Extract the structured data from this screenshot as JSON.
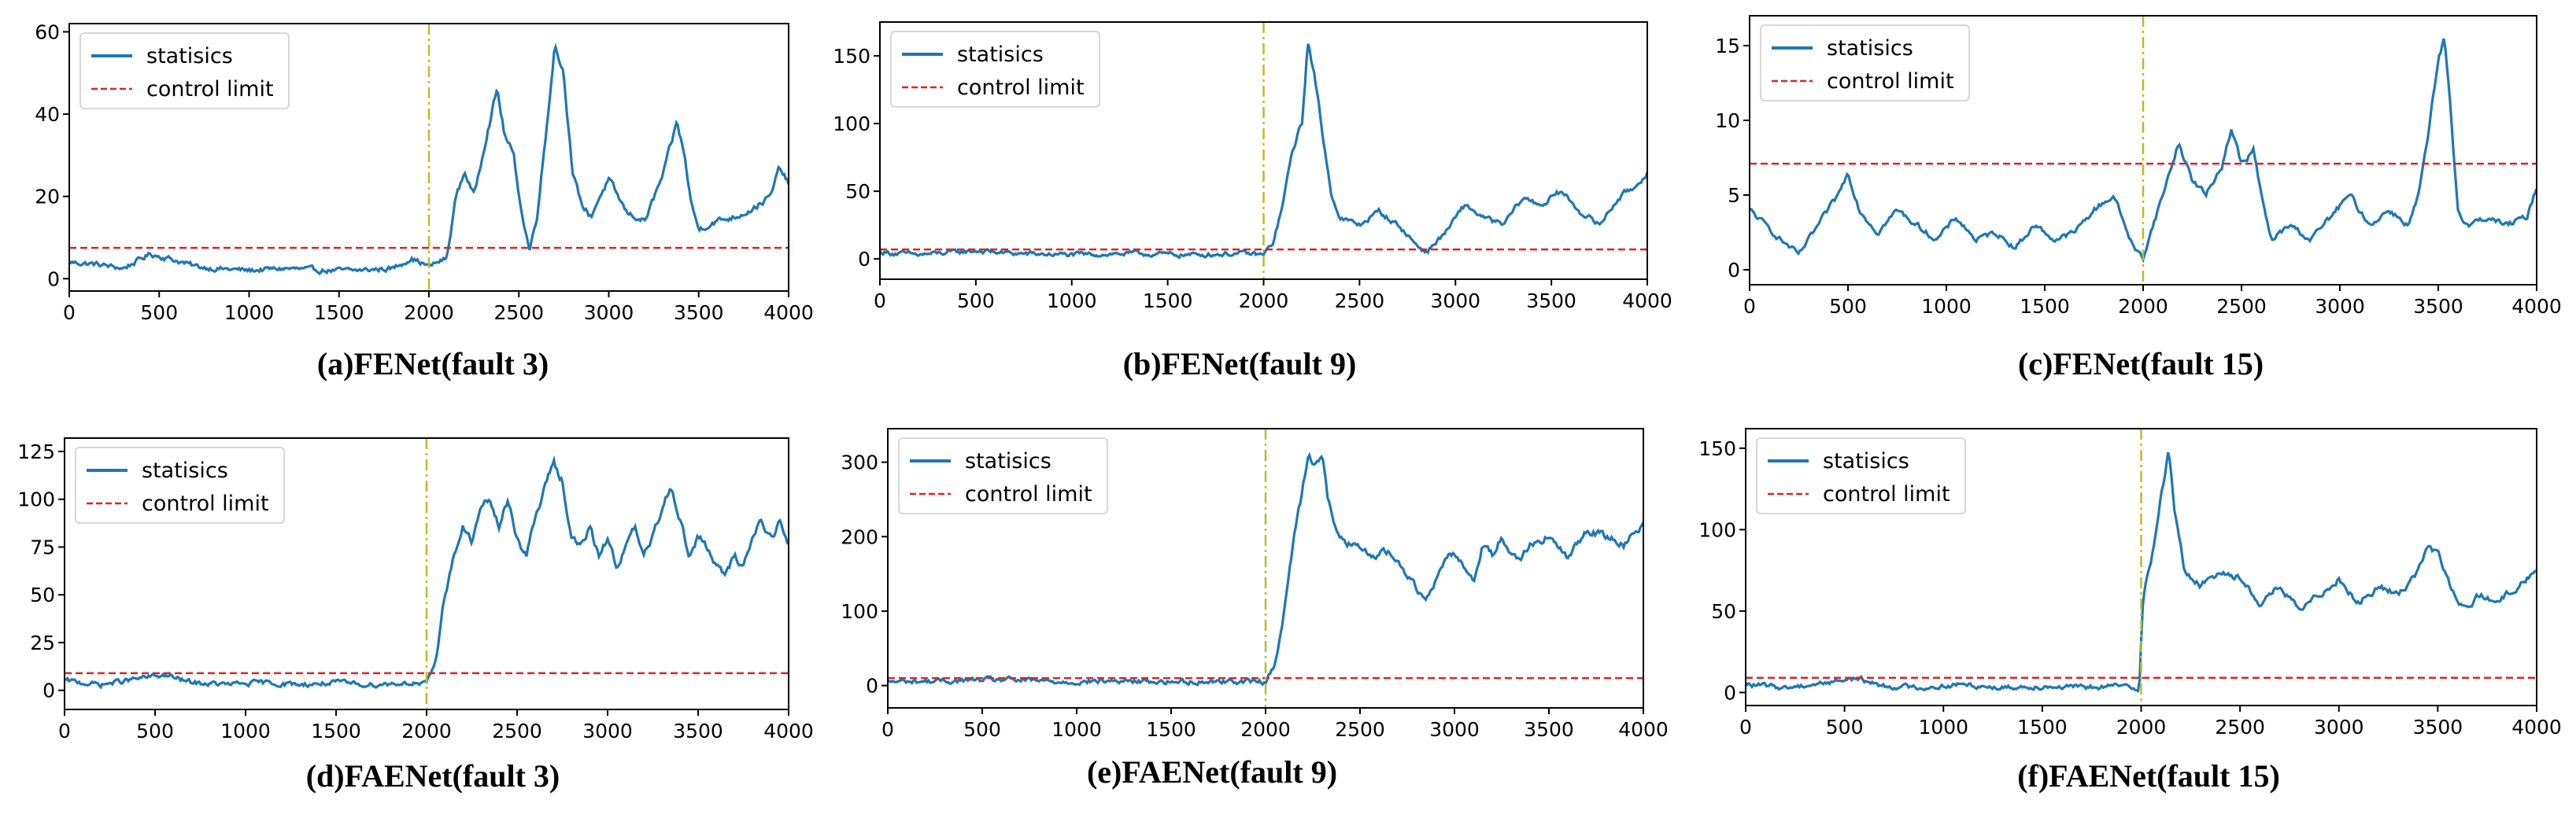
{
  "colors": {
    "statistics": "#1f77b4",
    "control_limit": "#d62728",
    "fault_line": "#bcbd22"
  },
  "chart_data": [
    {
      "type": "line",
      "caption": "(a)FENet(fault 3)",
      "legend": [
        "statisics",
        "control limit"
      ],
      "legend_position": "top-left",
      "xlim": [
        0,
        4000
      ],
      "ylim": [
        -3,
        62
      ],
      "xticks": [
        0,
        500,
        1000,
        1500,
        2000,
        2500,
        3000,
        3500,
        4000
      ],
      "yticks": [
        0,
        20,
        40,
        60
      ],
      "control_limit": 7.5,
      "fault_onset": 2000,
      "series_points": [
        [
          0,
          4
        ],
        [
          150,
          3.5
        ],
        [
          300,
          2.5
        ],
        [
          450,
          6
        ],
        [
          550,
          5
        ],
        [
          700,
          3
        ],
        [
          800,
          2.5
        ],
        [
          1000,
          2
        ],
        [
          1200,
          2.5
        ],
        [
          1400,
          2
        ],
        [
          1600,
          2
        ],
        [
          1800,
          2.5
        ],
        [
          1900,
          5
        ],
        [
          2000,
          3
        ],
        [
          2100,
          5
        ],
        [
          2150,
          20
        ],
        [
          2200,
          26
        ],
        [
          2250,
          20
        ],
        [
          2320,
          35
        ],
        [
          2380,
          46
        ],
        [
          2420,
          35
        ],
        [
          2470,
          30
        ],
        [
          2520,
          15
        ],
        [
          2560,
          7
        ],
        [
          2600,
          15
        ],
        [
          2650,
          35
        ],
        [
          2700,
          57
        ],
        [
          2750,
          50
        ],
        [
          2800,
          25
        ],
        [
          2850,
          18
        ],
        [
          2900,
          15
        ],
        [
          2950,
          20
        ],
        [
          3000,
          24
        ],
        [
          3050,
          20
        ],
        [
          3100,
          16
        ],
        [
          3200,
          14
        ],
        [
          3300,
          25
        ],
        [
          3380,
          38
        ],
        [
          3420,
          30
        ],
        [
          3460,
          18
        ],
        [
          3500,
          12
        ],
        [
          3600,
          14
        ],
        [
          3700,
          15
        ],
        [
          3800,
          17
        ],
        [
          3900,
          20
        ],
        [
          3950,
          27
        ],
        [
          4000,
          23
        ]
      ]
    },
    {
      "type": "line",
      "caption": "(b)FENet(fault 9)",
      "legend": [
        "statisics",
        "control limit"
      ],
      "legend_position": "top-left",
      "xlim": [
        0,
        4000
      ],
      "ylim": [
        -15,
        175
      ],
      "xticks": [
        0,
        500,
        1000,
        1500,
        2000,
        2500,
        3000,
        3500,
        4000
      ],
      "yticks": [
        0,
        50,
        100,
        150
      ],
      "control_limit": 7,
      "fault_onset": 2000,
      "series_points": [
        [
          0,
          5
        ],
        [
          200,
          3
        ],
        [
          500,
          6
        ],
        [
          700,
          4
        ],
        [
          1000,
          3
        ],
        [
          1300,
          4
        ],
        [
          1600,
          3
        ],
        [
          1900,
          4
        ],
        [
          2000,
          3
        ],
        [
          2050,
          12
        ],
        [
          2100,
          40
        ],
        [
          2150,
          80
        ],
        [
          2200,
          100
        ],
        [
          2230,
          160
        ],
        [
          2260,
          140
        ],
        [
          2300,
          100
        ],
        [
          2350,
          50
        ],
        [
          2400,
          30
        ],
        [
          2500,
          25
        ],
        [
          2600,
          35
        ],
        [
          2700,
          25
        ],
        [
          2800,
          10
        ],
        [
          2850,
          5
        ],
        [
          2950,
          20
        ],
        [
          3050,
          40
        ],
        [
          3150,
          30
        ],
        [
          3250,
          25
        ],
        [
          3350,
          45
        ],
        [
          3450,
          40
        ],
        [
          3550,
          50
        ],
        [
          3650,
          35
        ],
        [
          3750,
          25
        ],
        [
          3850,
          45
        ],
        [
          3950,
          55
        ],
        [
          4000,
          65
        ]
      ]
    },
    {
      "type": "line",
      "caption": "(c)FENet(fault 15)",
      "legend": [
        "statisics",
        "control limit"
      ],
      "legend_position": "top-left",
      "xlim": [
        0,
        4000
      ],
      "ylim": [
        -1,
        17
      ],
      "xticks": [
        0,
        500,
        1000,
        1500,
        2000,
        2500,
        3000,
        3500,
        4000
      ],
      "yticks": [
        0,
        5,
        10,
        15
      ],
      "control_limit": 7.1,
      "fault_onset": 2000,
      "series_points": [
        [
          0,
          4
        ],
        [
          80,
          3
        ],
        [
          160,
          2
        ],
        [
          250,
          1
        ],
        [
          350,
          3
        ],
        [
          450,
          5
        ],
        [
          500,
          6.5
        ],
        [
          560,
          4
        ],
        [
          650,
          2.5
        ],
        [
          750,
          4
        ],
        [
          850,
          3
        ],
        [
          950,
          2
        ],
        [
          1050,
          3.5
        ],
        [
          1150,
          2
        ],
        [
          1250,
          2.5
        ],
        [
          1350,
          1.5
        ],
        [
          1450,
          3
        ],
        [
          1550,
          2
        ],
        [
          1650,
          2.5
        ],
        [
          1750,
          4
        ],
        [
          1850,
          5
        ],
        [
          1950,
          1.5
        ],
        [
          2000,
          0.8
        ],
        [
          2050,
          3
        ],
        [
          2100,
          5
        ],
        [
          2180,
          8.5
        ],
        [
          2250,
          6
        ],
        [
          2320,
          5
        ],
        [
          2400,
          7
        ],
        [
          2450,
          9.5
        ],
        [
          2500,
          7
        ],
        [
          2560,
          8
        ],
        [
          2600,
          5
        ],
        [
          2650,
          2
        ],
        [
          2750,
          3
        ],
        [
          2850,
          2
        ],
        [
          2950,
          3.5
        ],
        [
          3050,
          5
        ],
        [
          3150,
          3
        ],
        [
          3250,
          4
        ],
        [
          3350,
          3
        ],
        [
          3400,
          5
        ],
        [
          3450,
          9
        ],
        [
          3500,
          14
        ],
        [
          3530,
          15.3
        ],
        [
          3560,
          11
        ],
        [
          3600,
          4
        ],
        [
          3650,
          3
        ],
        [
          3750,
          3.5
        ],
        [
          3850,
          3
        ],
        [
          3950,
          3.5
        ],
        [
          4000,
          5.5
        ]
      ]
    },
    {
      "type": "line",
      "caption": "(d)FAENet(fault 3)",
      "legend": [
        "statisics",
        "control limit"
      ],
      "legend_position": "top-left",
      "xlim": [
        0,
        4000
      ],
      "ylim": [
        -10,
        132
      ],
      "xticks": [
        0,
        500,
        1000,
        1500,
        2000,
        2500,
        3000,
        3500,
        4000
      ],
      "yticks": [
        0,
        25,
        50,
        75,
        100,
        125
      ],
      "control_limit": 9,
      "fault_onset": 2000,
      "series_points": [
        [
          0,
          5
        ],
        [
          200,
          3
        ],
        [
          400,
          6
        ],
        [
          550,
          8
        ],
        [
          700,
          4
        ],
        [
          900,
          3
        ],
        [
          1100,
          4
        ],
        [
          1300,
          3
        ],
        [
          1500,
          4
        ],
        [
          1700,
          3
        ],
        [
          1900,
          4
        ],
        [
          2000,
          3
        ],
        [
          2050,
          15
        ],
        [
          2100,
          50
        ],
        [
          2150,
          70
        ],
        [
          2200,
          85
        ],
        [
          2250,
          78
        ],
        [
          2300,
          95
        ],
        [
          2350,
          100
        ],
        [
          2400,
          85
        ],
        [
          2450,
          100
        ],
        [
          2500,
          80
        ],
        [
          2550,
          70
        ],
        [
          2600,
          90
        ],
        [
          2650,
          105
        ],
        [
          2700,
          120
        ],
        [
          2750,
          110
        ],
        [
          2800,
          80
        ],
        [
          2850,
          75
        ],
        [
          2900,
          85
        ],
        [
          2950,
          70
        ],
        [
          3000,
          80
        ],
        [
          3050,
          65
        ],
        [
          3100,
          75
        ],
        [
          3150,
          85
        ],
        [
          3200,
          70
        ],
        [
          3250,
          80
        ],
        [
          3300,
          95
        ],
        [
          3350,
          108
        ],
        [
          3400,
          90
        ],
        [
          3450,
          70
        ],
        [
          3500,
          80
        ],
        [
          3550,
          75
        ],
        [
          3600,
          65
        ],
        [
          3650,
          60
        ],
        [
          3700,
          70
        ],
        [
          3750,
          65
        ],
        [
          3800,
          80
        ],
        [
          3850,
          90
        ],
        [
          3900,
          80
        ],
        [
          3950,
          88
        ],
        [
          4000,
          75
        ]
      ]
    },
    {
      "type": "line",
      "caption": "(e)FAENet(fault 9)",
      "legend": [
        "statisics",
        "control limit"
      ],
      "legend_position": "top-left",
      "xlim": [
        0,
        4000
      ],
      "ylim": [
        -30,
        345
      ],
      "xticks": [
        0,
        500,
        1000,
        1500,
        2000,
        2500,
        3000,
        3500,
        4000
      ],
      "yticks": [
        0,
        100,
        200,
        300
      ],
      "control_limit": 10,
      "fault_onset": 2000,
      "series_points": [
        [
          0,
          5
        ],
        [
          300,
          6
        ],
        [
          600,
          8
        ],
        [
          900,
          5
        ],
        [
          1200,
          6
        ],
        [
          1500,
          5
        ],
        [
          1800,
          6
        ],
        [
          2000,
          5
        ],
        [
          2050,
          30
        ],
        [
          2100,
          100
        ],
        [
          2150,
          200
        ],
        [
          2200,
          270
        ],
        [
          2230,
          315
        ],
        [
          2260,
          300
        ],
        [
          2300,
          310
        ],
        [
          2330,
          250
        ],
        [
          2380,
          200
        ],
        [
          2450,
          190
        ],
        [
          2550,
          175
        ],
        [
          2650,
          180
        ],
        [
          2750,
          150
        ],
        [
          2800,
          130
        ],
        [
          2850,
          120
        ],
        [
          2900,
          140
        ],
        [
          2950,
          170
        ],
        [
          3000,
          180
        ],
        [
          3050,
          160
        ],
        [
          3100,
          140
        ],
        [
          3150,
          190
        ],
        [
          3200,
          175
        ],
        [
          3250,
          200
        ],
        [
          3300,
          180
        ],
        [
          3350,
          170
        ],
        [
          3400,
          190
        ],
        [
          3500,
          200
        ],
        [
          3600,
          170
        ],
        [
          3700,
          210
        ],
        [
          3800,
          200
        ],
        [
          3900,
          190
        ],
        [
          4000,
          220
        ]
      ]
    },
    {
      "type": "line",
      "caption": "(f)FAENet(fault 15)",
      "legend": [
        "statisics",
        "control limit"
      ],
      "legend_position": "top-left",
      "xlim": [
        0,
        4000
      ],
      "ylim": [
        -8,
        162
      ],
      "xticks": [
        0,
        500,
        1000,
        1500,
        2000,
        2500,
        3000,
        3500,
        4000
      ],
      "yticks": [
        0,
        50,
        100,
        150
      ],
      "control_limit": 9,
      "fault_onset": 2000,
      "series_points": [
        [
          0,
          5
        ],
        [
          200,
          3
        ],
        [
          400,
          6
        ],
        [
          550,
          9
        ],
        [
          700,
          4
        ],
        [
          900,
          3
        ],
        [
          1100,
          5
        ],
        [
          1300,
          3
        ],
        [
          1500,
          4
        ],
        [
          1700,
          3
        ],
        [
          1900,
          4
        ],
        [
          1990,
          3
        ],
        [
          2010,
          60
        ],
        [
          2050,
          80
        ],
        [
          2100,
          120
        ],
        [
          2140,
          148
        ],
        [
          2170,
          110
        ],
        [
          2220,
          75
        ],
        [
          2300,
          65
        ],
        [
          2400,
          75
        ],
        [
          2500,
          70
        ],
        [
          2600,
          55
        ],
        [
          2700,
          65
        ],
        [
          2800,
          50
        ],
        [
          2900,
          60
        ],
        [
          3000,
          70
        ],
        [
          3100,
          55
        ],
        [
          3200,
          65
        ],
        [
          3300,
          60
        ],
        [
          3400,
          75
        ],
        [
          3450,
          90
        ],
        [
          3500,
          85
        ],
        [
          3550,
          70
        ],
        [
          3600,
          55
        ],
        [
          3650,
          50
        ],
        [
          3700,
          60
        ],
        [
          3800,
          55
        ],
        [
          3900,
          65
        ],
        [
          4000,
          75
        ]
      ]
    }
  ]
}
